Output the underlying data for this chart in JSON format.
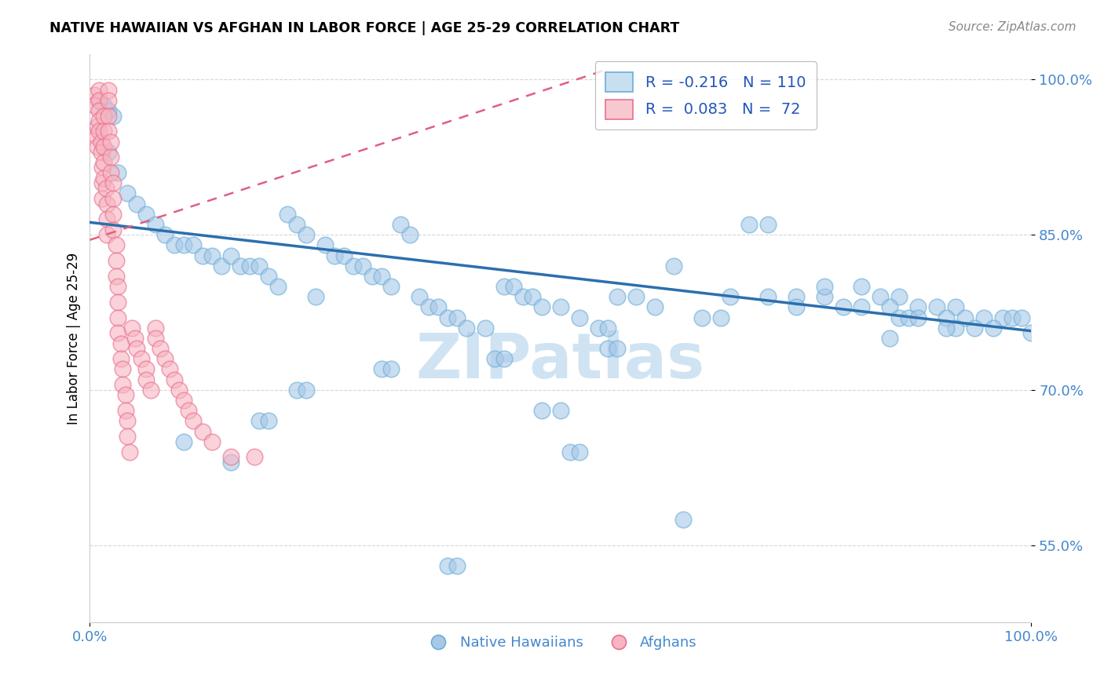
{
  "title": "NATIVE HAWAIIAN VS AFGHAN IN LABOR FORCE | AGE 25-29 CORRELATION CHART",
  "source": "Source: ZipAtlas.com",
  "ylabel": "In Labor Force | Age 25-29",
  "xmin": 0.0,
  "xmax": 1.0,
  "ymin": 0.475,
  "ymax": 1.025,
  "yticks": [
    0.55,
    0.7,
    0.85,
    1.0
  ],
  "ytick_labels": [
    "55.0%",
    "70.0%",
    "85.0%",
    "100.0%"
  ],
  "xticks": [
    0.0,
    1.0
  ],
  "xtick_labels": [
    "0.0%",
    "100.0%"
  ],
  "blue_color": "#a8c8e8",
  "blue_edge_color": "#6baed6",
  "pink_color": "#f8b4c0",
  "pink_edge_color": "#e87090",
  "blue_line_color": "#2c6fad",
  "pink_line_color": "#e06080",
  "watermark_text": "ZIPatlas",
  "watermark_color": "#c8dff0",
  "blue_line_x0": 0.0,
  "blue_line_y0": 0.862,
  "blue_line_x1": 1.0,
  "blue_line_y1": 0.757,
  "pink_line_x0": 0.0,
  "pink_line_y0": 0.845,
  "pink_line_x1": 0.55,
  "pink_line_y1": 1.01,
  "native_hawaiian_x": [
    0.01,
    0.015,
    0.02,
    0.02,
    0.025,
    0.03,
    0.04,
    0.05,
    0.06,
    0.07,
    0.08,
    0.09,
    0.1,
    0.11,
    0.12,
    0.13,
    0.14,
    0.15,
    0.16,
    0.17,
    0.18,
    0.19,
    0.2,
    0.21,
    0.22,
    0.23,
    0.24,
    0.25,
    0.26,
    0.27,
    0.28,
    0.29,
    0.3,
    0.31,
    0.32,
    0.33,
    0.34,
    0.35,
    0.36,
    0.37,
    0.38,
    0.39,
    0.4,
    0.42,
    0.44,
    0.45,
    0.46,
    0.47,
    0.48,
    0.5,
    0.52,
    0.54,
    0.55,
    0.56,
    0.58,
    0.6,
    0.62,
    0.65,
    0.67,
    0.7,
    0.72,
    0.75,
    0.78,
    0.8,
    0.82,
    0.84,
    0.86,
    0.88,
    0.9,
    0.92,
    0.93,
    0.95,
    0.97,
    0.98,
    0.99,
    1.0,
    0.38,
    0.39,
    0.51,
    0.52,
    0.63,
    0.75,
    0.85,
    0.86,
    0.87,
    0.91,
    0.92,
    0.94,
    0.96,
    0.5,
    0.48,
    0.22,
    0.23,
    0.18,
    0.19,
    0.31,
    0.32,
    0.43,
    0.44,
    0.55,
    0.56,
    0.68,
    0.72,
    0.78,
    0.82,
    0.85,
    0.88,
    0.91,
    0.1,
    0.15
  ],
  "native_hawaiian_y": [
    0.98,
    0.975,
    0.97,
    0.93,
    0.965,
    0.91,
    0.89,
    0.88,
    0.87,
    0.86,
    0.85,
    0.84,
    0.84,
    0.84,
    0.83,
    0.83,
    0.82,
    0.83,
    0.82,
    0.82,
    0.82,
    0.81,
    0.8,
    0.87,
    0.86,
    0.85,
    0.79,
    0.84,
    0.83,
    0.83,
    0.82,
    0.82,
    0.81,
    0.81,
    0.8,
    0.86,
    0.85,
    0.79,
    0.78,
    0.78,
    0.77,
    0.77,
    0.76,
    0.76,
    0.8,
    0.8,
    0.79,
    0.79,
    0.78,
    0.78,
    0.77,
    0.76,
    0.76,
    0.79,
    0.79,
    0.78,
    0.82,
    0.77,
    0.77,
    0.86,
    0.86,
    0.79,
    0.79,
    0.78,
    0.78,
    0.79,
    0.79,
    0.78,
    0.78,
    0.78,
    0.77,
    0.77,
    0.77,
    0.77,
    0.77,
    0.755,
    0.53,
    0.53,
    0.64,
    0.64,
    0.575,
    0.78,
    0.78,
    0.77,
    0.77,
    0.77,
    0.76,
    0.76,
    0.76,
    0.68,
    0.68,
    0.7,
    0.7,
    0.67,
    0.67,
    0.72,
    0.72,
    0.73,
    0.73,
    0.74,
    0.74,
    0.79,
    0.79,
    0.8,
    0.8,
    0.75,
    0.77,
    0.76,
    0.65,
    0.63
  ],
  "afghan_x": [
    0.005,
    0.005,
    0.007,
    0.008,
    0.008,
    0.01,
    0.01,
    0.01,
    0.01,
    0.01,
    0.012,
    0.012,
    0.013,
    0.013,
    0.013,
    0.015,
    0.015,
    0.015,
    0.015,
    0.015,
    0.017,
    0.018,
    0.018,
    0.018,
    0.02,
    0.02,
    0.02,
    0.02,
    0.022,
    0.022,
    0.022,
    0.025,
    0.025,
    0.025,
    0.025,
    0.028,
    0.028,
    0.028,
    0.03,
    0.03,
    0.03,
    0.03,
    0.033,
    0.033,
    0.035,
    0.035,
    0.038,
    0.038,
    0.04,
    0.04,
    0.042,
    0.045,
    0.048,
    0.05,
    0.055,
    0.06,
    0.06,
    0.065,
    0.07,
    0.07,
    0.075,
    0.08,
    0.085,
    0.09,
    0.095,
    0.1,
    0.105,
    0.11,
    0.12,
    0.13,
    0.15,
    0.175
  ],
  "afghan_y": [
    0.985,
    0.975,
    0.945,
    0.955,
    0.935,
    0.99,
    0.98,
    0.97,
    0.96,
    0.95,
    0.94,
    0.93,
    0.915,
    0.9,
    0.885,
    0.965,
    0.95,
    0.935,
    0.92,
    0.905,
    0.895,
    0.88,
    0.865,
    0.85,
    0.99,
    0.98,
    0.965,
    0.95,
    0.94,
    0.925,
    0.91,
    0.9,
    0.885,
    0.87,
    0.855,
    0.84,
    0.825,
    0.81,
    0.8,
    0.785,
    0.77,
    0.755,
    0.745,
    0.73,
    0.72,
    0.705,
    0.695,
    0.68,
    0.67,
    0.655,
    0.64,
    0.76,
    0.75,
    0.74,
    0.73,
    0.72,
    0.71,
    0.7,
    0.76,
    0.75,
    0.74,
    0.73,
    0.72,
    0.71,
    0.7,
    0.69,
    0.68,
    0.67,
    0.66,
    0.65,
    0.635,
    0.635
  ]
}
